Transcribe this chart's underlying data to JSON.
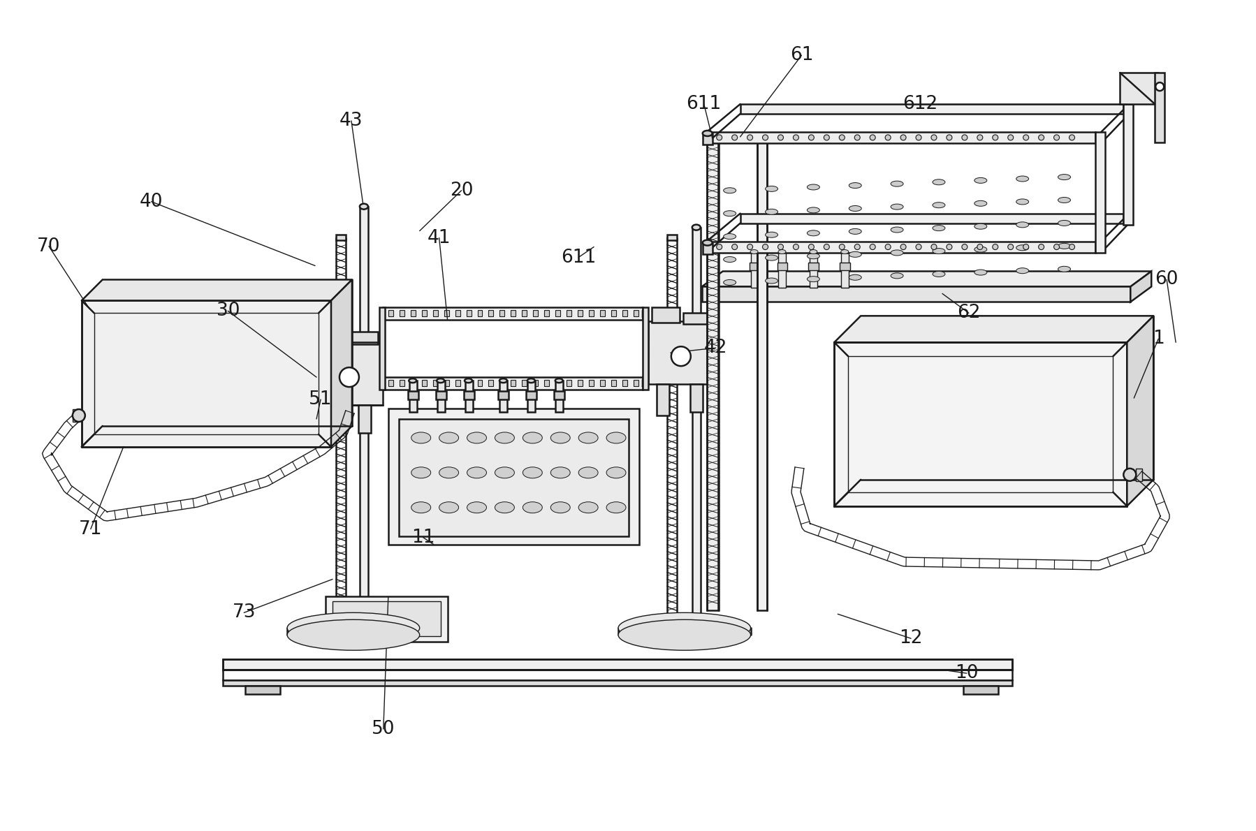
{
  "bg_color": "#ffffff",
  "lc": "#1a1a1a",
  "lw": 1.8,
  "lw_thin": 1.0,
  "lw_thick": 2.2,
  "figsize": [
    17.99,
    11.9
  ],
  "dpi": 100,
  "label_fs": 19,
  "labels": [
    [
      "1",
      1660,
      485
    ],
    [
      "10",
      1385,
      965
    ],
    [
      "11",
      605,
      770
    ],
    [
      "12",
      1305,
      915
    ],
    [
      "20",
      660,
      272
    ],
    [
      "30",
      325,
      445
    ],
    [
      "40",
      215,
      288
    ],
    [
      "41",
      628,
      340
    ],
    [
      "42",
      1025,
      498
    ],
    [
      "43",
      502,
      172
    ],
    [
      "50",
      548,
      1045
    ],
    [
      "51",
      458,
      572
    ],
    [
      "60",
      1672,
      400
    ],
    [
      "61",
      1148,
      78
    ],
    [
      "611",
      1008,
      148
    ],
    [
      "611",
      828,
      368
    ],
    [
      "612",
      1318,
      148
    ],
    [
      "62",
      1388,
      448
    ],
    [
      "70",
      68,
      352
    ],
    [
      "71",
      128,
      758
    ],
    [
      "73",
      348,
      878
    ]
  ]
}
